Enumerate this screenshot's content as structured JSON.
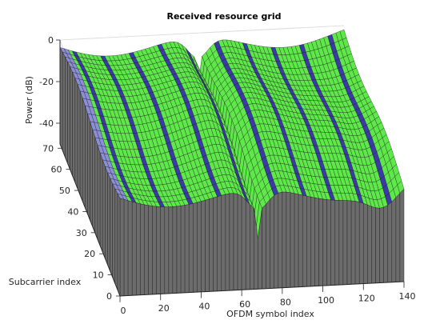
{
  "chart_data": {
    "type": "surface3d",
    "title": "Received resource grid",
    "xlabel": "OFDM symbol index",
    "ylabel": "Subcarrier index",
    "zlabel": "Power (dB)",
    "xlim": [
      0,
      140
    ],
    "ylim": [
      0,
      72
    ],
    "zlim": [
      -50,
      0
    ],
    "xticks": [
      "0",
      "20",
      "40",
      "60",
      "80",
      "100",
      "120",
      "140"
    ],
    "yticks": [
      "0",
      "10",
      "20",
      "30",
      "40",
      "50",
      "60",
      "70"
    ],
    "zticks": [
      "0",
      "-20",
      "-40"
    ],
    "surface": {
      "n_symbols": 140,
      "n_subcarriers": 72,
      "pilot_symbol_columns": [
        7,
        21,
        35,
        49,
        63,
        77,
        91,
        105,
        119,
        133
      ],
      "control_symbols": [
        1,
        2,
        3,
        4
      ],
      "fading_dip_symbol": 68,
      "peak_power_db": -3,
      "floor_power_db": -30
    },
    "colors": {
      "data_re": "#5ee84a",
      "control_re": "#8b8fd8",
      "pilot_re": "#f0e050",
      "reference_re": "#3a3aa8",
      "unused_re": "#6c6c6c",
      "mesh_edge": "#1a1a1a",
      "axis": "#262626",
      "grid": "#dcdcdc"
    }
  }
}
